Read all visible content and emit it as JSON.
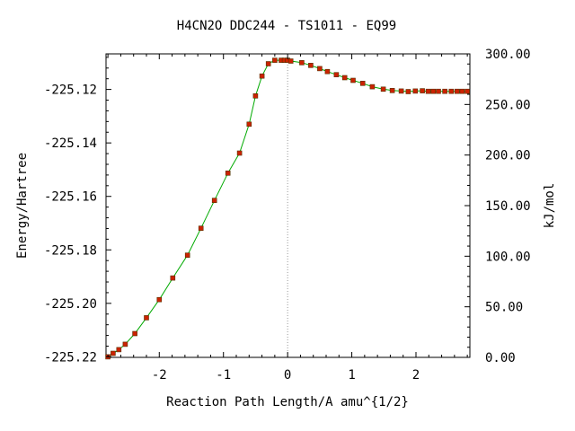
{
  "chart_data": {
    "type": "line",
    "title": "H4CN2O   DDC244 - TS1011 - EQ99",
    "xlabel": "Reaction Path Length/A amu^{1/2}",
    "ylabel": "Energy/Hartree",
    "y2label": "kJ/mol",
    "xlim": [
      -2.83,
      2.84
    ],
    "ylim": [
      -225.2202,
      -225.1067
    ],
    "y2lim": [
      0.0,
      300.0
    ],
    "x_ticks": [
      "-2",
      "-1",
      "0",
      "1",
      "2"
    ],
    "x_tick_values": [
      -2,
      -1,
      0,
      1,
      2
    ],
    "y_ticks": [
      "-225.12",
      "-225.14",
      "-225.16",
      "-225.18",
      "-225.20",
      "-225.22"
    ],
    "y_tick_values": [
      -225.12,
      -225.14,
      -225.16,
      -225.18,
      -225.2,
      -225.22
    ],
    "y2_ticks": [
      "300.00",
      "250.00",
      "200.00",
      "150.00",
      "100.00",
      "50.00",
      "0.00"
    ],
    "y2_tick_values": [
      300,
      250,
      200,
      150,
      100,
      50,
      0
    ],
    "ts_line_x": 0.0,
    "grid": false,
    "line_color": "#00aa00",
    "marker_color": "#cc2200",
    "ts_line_color": "#999999",
    "series": [
      {
        "x": [
          -2.8,
          -2.72,
          -2.63,
          -2.53,
          -2.38,
          -2.2,
          -2.0,
          -1.79,
          -1.56,
          -1.35,
          -1.14,
          -0.93,
          -0.75,
          -0.6,
          -0.5,
          -0.4,
          -0.3,
          -0.2,
          -0.1,
          -0.05,
          0.0,
          0.05,
          0.22,
          0.36,
          0.5,
          0.62,
          0.76,
          0.89,
          1.02,
          1.17,
          1.32,
          1.49,
          1.63,
          1.77,
          1.88,
          1.99,
          2.1,
          2.19,
          2.27,
          2.35,
          2.45,
          2.55,
          2.64,
          2.72,
          2.8
        ],
        "y": [
          -225.22,
          -225.2187,
          -225.2173,
          -225.2153,
          -225.2113,
          -225.2054,
          -225.1986,
          -225.1905,
          -225.182,
          -225.1719,
          -225.1615,
          -225.1513,
          -225.1438,
          -225.133,
          -225.1224,
          -225.115,
          -225.1104,
          -225.1091,
          -225.1091,
          -225.1091,
          -225.1091,
          -225.1094,
          -225.11,
          -225.111,
          -225.1122,
          -225.1133,
          -225.1145,
          -225.1156,
          -225.1166,
          -225.1177,
          -225.119,
          -225.1199,
          -225.1204,
          -225.1206,
          -225.1208,
          -225.1206,
          -225.1205,
          -225.1207,
          -225.1207,
          -225.1207,
          -225.1207,
          -225.1207,
          -225.1207,
          -225.1207,
          -225.1207
        ]
      }
    ]
  }
}
